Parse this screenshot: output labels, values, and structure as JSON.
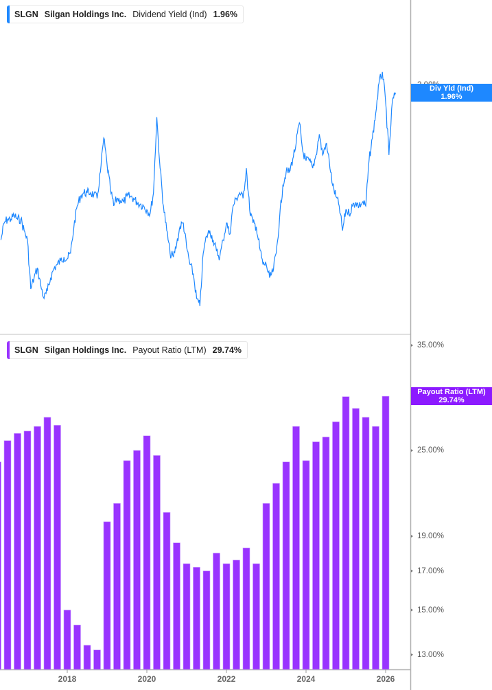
{
  "colors": {
    "yield": "#1e88ff",
    "payout": "#9933ff",
    "payout_tag": "#8c1aff",
    "axis": "#b0b0b0"
  },
  "legend_top": {
    "ticker": "SLGN",
    "company": "Silgan Holdings Inc.",
    "metric": "Dividend Yield (Ind)",
    "value": "1.96%"
  },
  "legend_bottom": {
    "ticker": "SLGN",
    "company": "Silgan Holdings Inc.",
    "metric": "Payout Ratio (LTM)",
    "value": "29.74%"
  },
  "tag_top": {
    "label": "Div Yld (Ind)",
    "value": "1.96%"
  },
  "tag_bottom": {
    "label": "Payout Ratio (LTM)",
    "value": "29.74%"
  },
  "x_ticks": [
    "2018",
    "2020",
    "2022",
    "2024",
    "2026"
  ],
  "chart_data": [
    {
      "type": "line",
      "series": [
        {
          "name": "Dividend Yield (Ind)",
          "unit": "%"
        }
      ],
      "date_range": [
        "2016-05",
        "2026-04"
      ],
      "interval": "monthly",
      "y_ticks": [
        "2.00%"
      ],
      "values": [
        1.18,
        1.27,
        1.29,
        1.29,
        1.31,
        1.29,
        1.29,
        1.23,
        1.18,
        0.92,
        0.98,
        1.03,
        0.94,
        0.87,
        0.91,
        0.98,
        1.03,
        1.05,
        1.07,
        1.09,
        1.08,
        1.11,
        1.25,
        1.36,
        1.41,
        1.43,
        1.43,
        1.43,
        1.42,
        1.4,
        1.54,
        1.72,
        1.58,
        1.45,
        1.36,
        1.4,
        1.39,
        1.38,
        1.41,
        1.41,
        1.4,
        1.38,
        1.37,
        1.36,
        1.34,
        1.32,
        1.43,
        1.83,
        1.56,
        1.36,
        1.23,
        1.11,
        1.09,
        1.16,
        1.25,
        1.27,
        1.14,
        1.05,
        1.0,
        0.87,
        0.83,
        1.11,
        1.2,
        1.23,
        1.18,
        1.12,
        1.09,
        1.18,
        1.27,
        1.21,
        1.36,
        1.4,
        1.43,
        1.4,
        1.56,
        1.34,
        1.27,
        1.25,
        1.14,
        1.05,
        1.05,
        0.98,
        1.01,
        1.11,
        1.29,
        1.47,
        1.54,
        1.54,
        1.61,
        1.69,
        1.8,
        1.65,
        1.6,
        1.6,
        1.56,
        1.63,
        1.74,
        1.63,
        1.69,
        1.6,
        1.47,
        1.41,
        1.36,
        1.23,
        1.34,
        1.32,
        1.36,
        1.38,
        1.36,
        1.38,
        1.36,
        1.6,
        1.72,
        1.85,
        2.01,
        2.07,
        1.91,
        1.63,
        1.91,
        1.96
      ],
      "grid": false
    },
    {
      "type": "bar",
      "series": [
        {
          "name": "Payout Ratio (LTM)",
          "unit": "%"
        }
      ],
      "date_range": [
        "2016-04",
        "2026-01"
      ],
      "interval": "quarterly",
      "y_scale": "log",
      "y_ticks": [
        "35.00%",
        "25.00%",
        "19.00%",
        "17.00%",
        "15.00%",
        "13.00%"
      ],
      "y_tick_values": [
        35,
        25,
        19,
        17,
        15,
        13
      ],
      "values": [
        24.1,
        25.8,
        26.4,
        26.6,
        27.0,
        27.8,
        27.1,
        15.0,
        14.3,
        13.4,
        13.2,
        19.9,
        21.1,
        24.2,
        25.0,
        26.2,
        24.6,
        20.5,
        18.6,
        17.4,
        17.2,
        17.0,
        18.0,
        17.4,
        17.6,
        18.3,
        17.4,
        21.1,
        22.5,
        24.1,
        27.0,
        24.2,
        25.7,
        26.1,
        27.4,
        29.7,
        28.6,
        27.8,
        27.0,
        29.74
      ],
      "grid": false
    }
  ]
}
